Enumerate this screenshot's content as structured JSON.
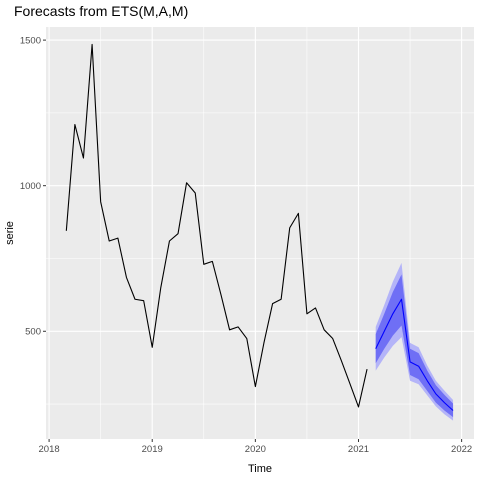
{
  "chart_data": {
    "type": "line",
    "title": "Forecasts from ETS(M,A,M)",
    "xlabel": "Time",
    "ylabel": "serie",
    "xlim": [
      2017.97,
      2022.12
    ],
    "ylim": [
      130,
      1545
    ],
    "x_ticks": [
      2018,
      2019,
      2020,
      2021,
      2022
    ],
    "x_tick_labels": [
      "2018",
      "2019",
      "2020",
      "2021",
      "2022"
    ],
    "y_ticks": [
      500,
      1000,
      1500
    ],
    "y_tick_labels": [
      "500",
      "1000",
      "1500"
    ],
    "grid": true,
    "legend": "none",
    "colors": {
      "panel": "#ebebeb",
      "grid": "#ffffff",
      "observed": "#000000",
      "forecast_mean": "#0000ff",
      "band_80": "#6f6ff5",
      "band_95": "#b4b4f8"
    },
    "series": [
      {
        "x": [
          2018.167,
          2018.25,
          2018.333,
          2018.417,
          2018.5,
          2018.583,
          2018.667,
          2018.75,
          2018.833,
          2018.917,
          2019.0,
          2019.083,
          2019.167,
          2019.25,
          2019.333,
          2019.417,
          2019.5,
          2019.583,
          2019.667,
          2019.75,
          2019.833,
          2019.917,
          2020.0,
          2020.083,
          2020.167,
          2020.25,
          2020.333,
          2020.417,
          2020.5,
          2020.583,
          2020.667,
          2020.75,
          2020.833,
          2020.917,
          2021.0,
          2021.083
        ],
        "values": [
          845,
          1210,
          1095,
          1485,
          945,
          810,
          820,
          685,
          610,
          605,
          445,
          650,
          810,
          835,
          1010,
          975,
          730,
          740,
          625,
          505,
          515,
          475,
          310,
          460,
          595,
          610,
          855,
          905,
          560,
          580,
          505,
          475,
          400,
          320,
          240,
          370
        ]
      },
      {
        "x": [
          2021.167,
          2021.25,
          2021.333,
          2021.417,
          2021.5,
          2021.583,
          2021.667,
          2021.75,
          2021.833,
          2021.917
        ],
        "values": [
          440,
          500,
          560,
          610,
          395,
          380,
          330,
          285,
          255,
          228
        ],
        "lo80": [
          390,
          440,
          485,
          520,
          350,
          335,
          295,
          255,
          228,
          205
        ],
        "hi80": [
          490,
          560,
          635,
          695,
          440,
          425,
          365,
          315,
          282,
          252
        ],
        "lo95": [
          365,
          410,
          450,
          480,
          330,
          318,
          280,
          242,
          215,
          193
        ],
        "hi95": [
          515,
          590,
          670,
          735,
          460,
          445,
          382,
          330,
          296,
          264
        ]
      }
    ]
  }
}
